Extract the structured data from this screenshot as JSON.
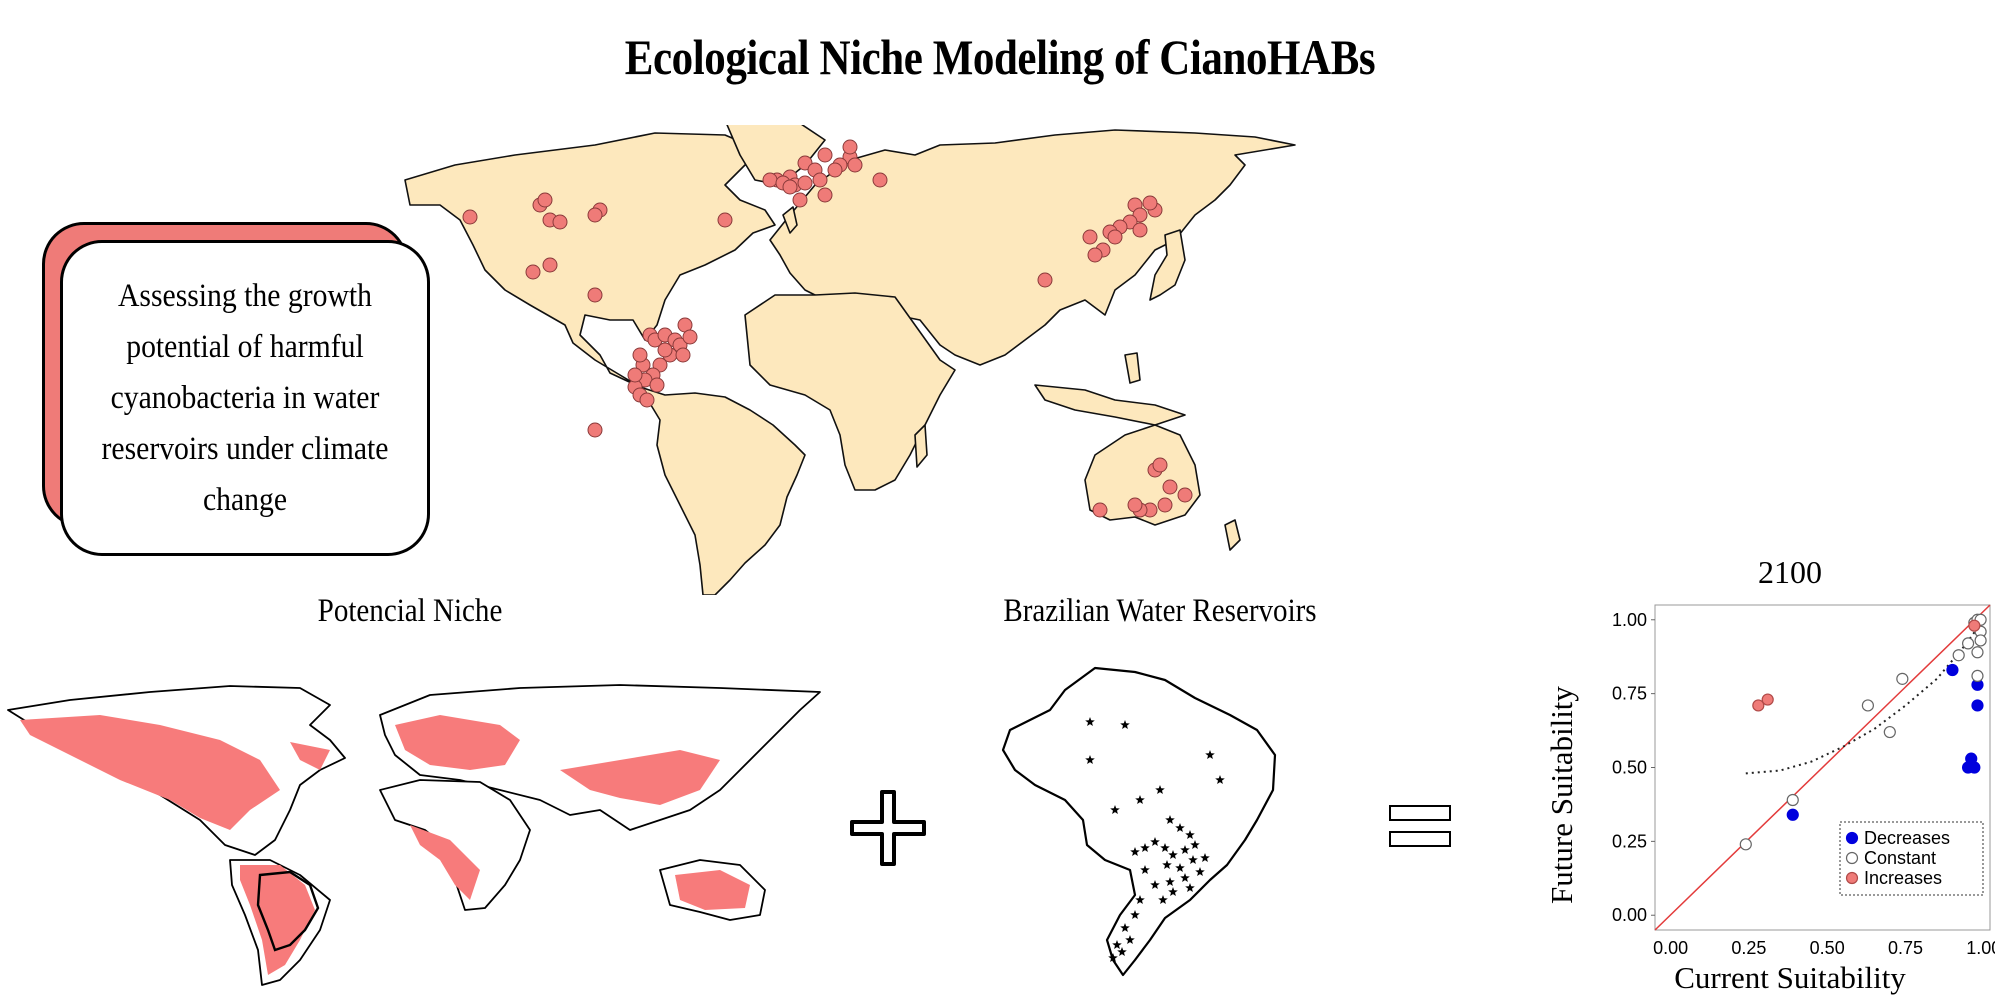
{
  "page": {
    "title": "Ecological Niche Modeling of CianoHABs",
    "callout": "Assessing the growth potential of harmful cyanobacteria in water reservoirs under climate change",
    "panel_niche": "Potencial Niche",
    "panel_reservoirs": "Brazilian Water Reservoirs",
    "operator_plus": "+",
    "operator_equals": "="
  },
  "colors": {
    "land": "#fde8bd",
    "occurrence": "#ef7b78",
    "niche": "#f77b7b",
    "decreases": "#0000dd",
    "constant": "#ffffff",
    "increases": "#ef7b78",
    "identity_line": "#e33b3b"
  },
  "chart_data": {
    "type": "scatter",
    "title": "2100",
    "xlabel": "Current Suitability",
    "ylabel": "Future Suitability",
    "xlim": [
      0,
      1.0
    ],
    "ylim": [
      0,
      1.0
    ],
    "xticks": [
      "0.00",
      "0.25",
      "0.50",
      "0.75",
      "1.00"
    ],
    "yticks": [
      "0.00",
      "0.25",
      "0.50",
      "0.75",
      "1.00"
    ],
    "legend": [
      "Decreases",
      "Constant",
      "Increases"
    ],
    "legend_position": "bottom-right",
    "series": [
      {
        "name": "Decreases",
        "points": [
          [
            0.39,
            0.34
          ],
          [
            0.9,
            0.83
          ],
          [
            0.95,
            0.5
          ],
          [
            0.96,
            0.53
          ],
          [
            0.97,
            0.5
          ],
          [
            0.98,
            0.78
          ],
          [
            0.98,
            0.71
          ]
        ]
      },
      {
        "name": "Constant",
        "points": [
          [
            0.24,
            0.24
          ],
          [
            0.39,
            0.39
          ],
          [
            0.63,
            0.71
          ],
          [
            0.7,
            0.62
          ],
          [
            0.74,
            0.8
          ],
          [
            0.92,
            0.88
          ],
          [
            0.95,
            0.92
          ],
          [
            0.97,
            0.99
          ],
          [
            0.98,
            1.0
          ],
          [
            0.99,
            0.96
          ],
          [
            0.99,
            0.93
          ],
          [
            0.98,
            0.89
          ],
          [
            0.98,
            0.81
          ],
          [
            0.99,
            1.0
          ]
        ]
      },
      {
        "name": "Increases",
        "points": [
          [
            0.28,
            0.71
          ],
          [
            0.31,
            0.73
          ],
          [
            0.97,
            0.98
          ]
        ]
      }
    ],
    "trend": [
      [
        0.24,
        0.48
      ],
      [
        0.35,
        0.49
      ],
      [
        0.45,
        0.52
      ],
      [
        0.55,
        0.57
      ],
      [
        0.65,
        0.63
      ],
      [
        0.75,
        0.71
      ],
      [
        0.85,
        0.8
      ],
      [
        0.93,
        0.9
      ],
      [
        1.0,
        1.0
      ]
    ]
  }
}
